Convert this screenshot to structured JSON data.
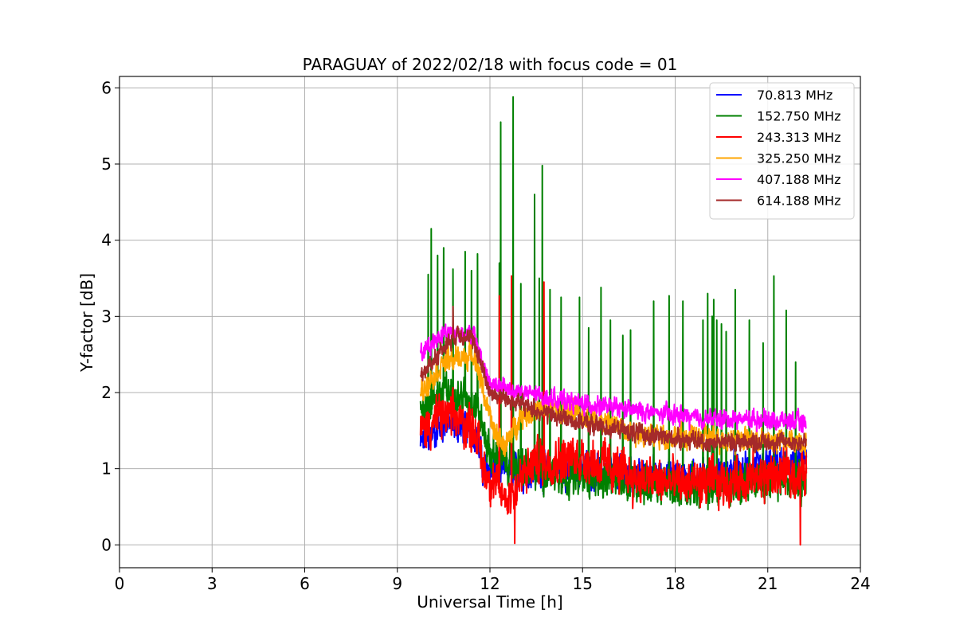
{
  "chart_data": {
    "type": "line",
    "title": "PARAGUAY of 2022/02/18 with focus code = 01",
    "xlabel": "Universal Time [h]",
    "ylabel": "Y-factor [dB]",
    "xlim": [
      0,
      24
    ],
    "ylim": [
      -0.3,
      6.15
    ],
    "xticks": [
      0,
      3,
      6,
      9,
      12,
      15,
      18,
      21,
      24
    ],
    "yticks": [
      0,
      1,
      2,
      3,
      4,
      5,
      6
    ],
    "x_tick_labels": [
      "0",
      "3",
      "6",
      "9",
      "12",
      "15",
      "18",
      "21",
      "24"
    ],
    "y_tick_labels": [
      "0",
      "1",
      "2",
      "3",
      "4",
      "5",
      "6"
    ],
    "grid": true,
    "legend_position": "upper right",
    "time_range": [
      9.75,
      22.25
    ],
    "series": [
      {
        "name": " 70.813 MHz",
        "color": "#0000ff",
        "profile": [
          [
            9.75,
            1.3
          ],
          [
            10.5,
            1.6
          ],
          [
            11.5,
            1.5
          ],
          [
            11.8,
            1.0
          ],
          [
            13.0,
            0.95
          ],
          [
            15.0,
            1.0
          ],
          [
            17.0,
            0.9
          ],
          [
            19.0,
            0.9
          ],
          [
            22.25,
            1.1
          ]
        ],
        "noise": 0.25
      },
      {
        "name": "152.750 MHz",
        "color": "#008000",
        "profile": [
          [
            9.75,
            1.8
          ],
          [
            10.5,
            2.0
          ],
          [
            11.5,
            1.9
          ],
          [
            12.0,
            1.2
          ],
          [
            13.0,
            1.0
          ],
          [
            15.0,
            0.9
          ],
          [
            17.0,
            0.8
          ],
          [
            19.0,
            0.75
          ],
          [
            22.25,
            0.9
          ]
        ],
        "noise": 0.3,
        "spikes": [
          [
            10.0,
            3.55
          ],
          [
            10.1,
            4.15
          ],
          [
            10.3,
            3.8
          ],
          [
            10.5,
            3.9
          ],
          [
            10.8,
            3.62
          ],
          [
            11.2,
            3.85
          ],
          [
            11.4,
            3.6
          ],
          [
            11.6,
            3.82
          ],
          [
            12.3,
            3.7
          ],
          [
            12.35,
            5.55
          ],
          [
            12.75,
            5.88
          ],
          [
            13.0,
            3.43
          ],
          [
            13.45,
            4.6
          ],
          [
            13.6,
            3.5
          ],
          [
            13.7,
            4.98
          ],
          [
            13.95,
            3.35
          ],
          [
            14.3,
            3.25
          ],
          [
            14.9,
            3.25
          ],
          [
            15.2,
            2.85
          ],
          [
            15.6,
            3.38
          ],
          [
            15.9,
            2.95
          ],
          [
            16.3,
            2.75
          ],
          [
            16.55,
            2.82
          ],
          [
            17.3,
            3.2
          ],
          [
            17.8,
            3.27
          ],
          [
            18.25,
            3.2
          ],
          [
            18.9,
            2.95
          ],
          [
            19.05,
            3.3
          ],
          [
            19.2,
            3.0
          ],
          [
            19.25,
            3.22
          ],
          [
            19.35,
            2.95
          ],
          [
            19.5,
            2.9
          ],
          [
            19.65,
            2.8
          ],
          [
            19.95,
            3.35
          ],
          [
            20.4,
            2.95
          ],
          [
            20.85,
            2.65
          ],
          [
            21.2,
            3.53
          ],
          [
            21.6,
            3.08
          ],
          [
            21.9,
            2.4
          ]
        ]
      },
      {
        "name": "243.313 MHz",
        "color": "#ff0000",
        "profile": [
          [
            9.75,
            1.5
          ],
          [
            10.5,
            1.7
          ],
          [
            11.5,
            1.55
          ],
          [
            11.8,
            1.0
          ],
          [
            12.5,
            0.6
          ],
          [
            13.5,
            1.1
          ],
          [
            15.0,
            1.15
          ],
          [
            17.0,
            0.85
          ],
          [
            19.0,
            0.8
          ],
          [
            21.0,
            0.9
          ],
          [
            22.25,
            0.95
          ]
        ],
        "noise": 0.35,
        "spikes": [
          [
            12.3,
            3.27
          ],
          [
            12.7,
            3.53
          ],
          [
            13.75,
            3.45
          ],
          [
            12.8,
            0.02
          ],
          [
            22.05,
            0.0
          ]
        ]
      },
      {
        "name": "325.250 MHz",
        "color": "#ffa500",
        "profile": [
          [
            9.75,
            2.0
          ],
          [
            10.5,
            2.4
          ],
          [
            11.5,
            2.5
          ],
          [
            11.8,
            2.0
          ],
          [
            12.1,
            1.5
          ],
          [
            12.5,
            1.3
          ],
          [
            13.0,
            1.7
          ],
          [
            14.0,
            1.8
          ],
          [
            15.0,
            1.7
          ],
          [
            17.0,
            1.45
          ],
          [
            19.0,
            1.4
          ],
          [
            22.25,
            1.35
          ]
        ],
        "noise": 0.18
      },
      {
        "name": "407.188 MHz",
        "color": "#ff00ff",
        "profile": [
          [
            9.75,
            2.5
          ],
          [
            10.5,
            2.8
          ],
          [
            11.5,
            2.75
          ],
          [
            12.0,
            2.1
          ],
          [
            13.0,
            2.0
          ],
          [
            15.0,
            1.85
          ],
          [
            17.0,
            1.75
          ],
          [
            19.0,
            1.65
          ],
          [
            21.0,
            1.65
          ],
          [
            22.25,
            1.6
          ]
        ],
        "noise": 0.14
      },
      {
        "name": "614.188 MHz",
        "color": "#a52a2a",
        "profile": [
          [
            9.75,
            2.2
          ],
          [
            10.5,
            2.6
          ],
          [
            11.0,
            2.8
          ],
          [
            11.5,
            2.65
          ],
          [
            12.0,
            2.0
          ],
          [
            13.0,
            1.85
          ],
          [
            14.0,
            1.7
          ],
          [
            15.0,
            1.6
          ],
          [
            17.0,
            1.45
          ],
          [
            19.0,
            1.35
          ],
          [
            22.25,
            1.35
          ]
        ],
        "noise": 0.14,
        "spikes": [
          [
            10.8,
            3.13
          ]
        ]
      }
    ]
  }
}
